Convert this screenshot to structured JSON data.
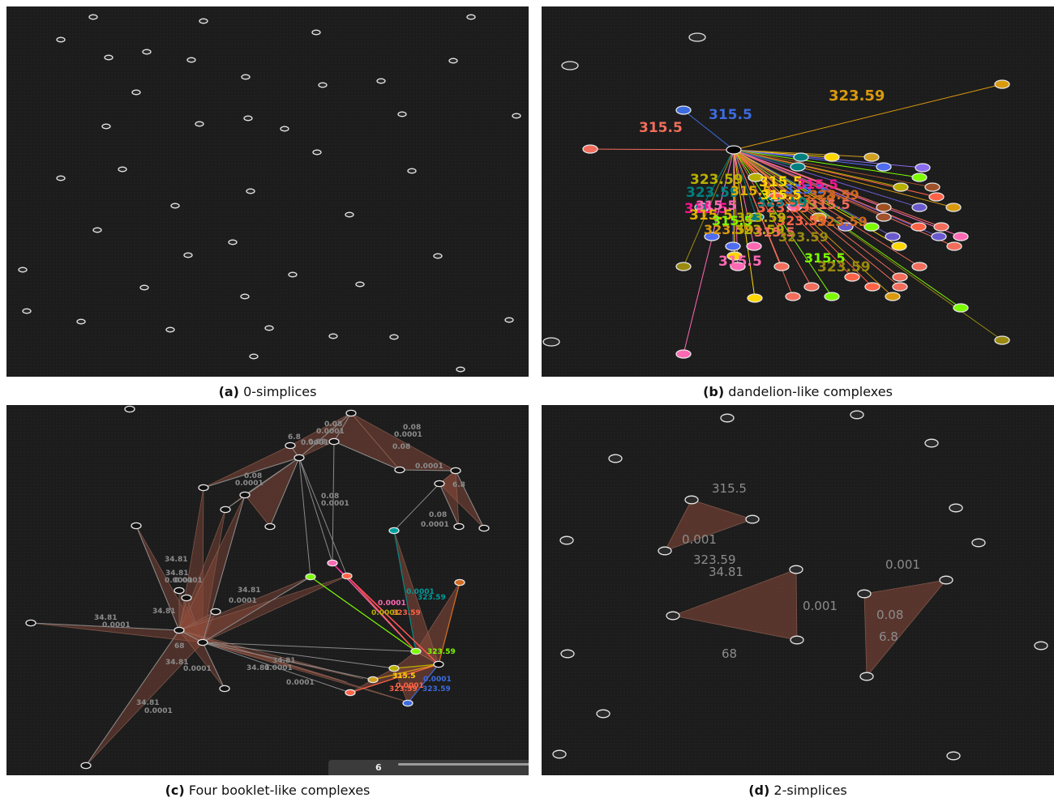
{
  "captions": [
    {
      "tag": "(a)",
      "text": "0-simplices"
    },
    {
      "tag": "(b)",
      "text": "dandelion-like complexes"
    },
    {
      "tag": "(c)",
      "text": "Four booklet-like complexes"
    },
    {
      "tag": "(d)",
      "text": "2-simplices"
    }
  ],
  "colors": {
    "background": "#1c1c1c",
    "node_stroke": "#e6e6e6",
    "face_fill": "#8a4a3a",
    "edge_gray": "#8a8a8a",
    "label_gray": "#8c8c8c"
  },
  "panel_b": {
    "labels": [
      {
        "text": "323.59",
        "color": "#d99a0e"
      },
      {
        "text": "315.5",
        "color": "#3d6be0"
      },
      {
        "text": "315.5",
        "color": "#f26d5b"
      },
      {
        "text": "315.5",
        "color": "#7cfc00"
      },
      {
        "text": "323.59",
        "color": "#9a8a10"
      },
      {
        "text": "315.5",
        "color": "#ff69b4"
      },
      {
        "text": "323.59",
        "color": "#b8b000"
      },
      {
        "text": "315.5",
        "color": "#ffd700"
      },
      {
        "text": "323.59",
        "color": "#008080"
      },
      {
        "text": "315.5",
        "color": "#ff1493"
      },
      {
        "text": "323.59",
        "color": "#ff6347"
      },
      {
        "text": "315.5",
        "color": "#e0b000"
      },
      {
        "text": "323.59",
        "color": "#d2691e"
      }
    ]
  },
  "panel_c": {
    "labels": [
      "0.08",
      "0.0001",
      "0.08",
      "0.0001",
      "6.8",
      "0.08",
      "0.0001",
      "0.08",
      "0.0001",
      "6.8",
      "0.08",
      "0.0001",
      "0.08",
      "0.0001",
      "0.08",
      "0.0001",
      "34.81",
      "0.0001",
      "34.81",
      "0.0001",
      "34.81",
      "0.0001",
      "34.81",
      "34.81",
      "0.0001",
      "68",
      "34.81",
      "0.0001",
      "34.81",
      "0.0001",
      "34.81",
      "0.0001",
      "34.81",
      "0.0001",
      "0.0001",
      "323.59",
      "0.0001",
      "323.59",
      "0.0001",
      "323.59",
      "315.5",
      "0.0001",
      "323.59",
      "0.0001",
      "323.59"
    ],
    "slider_value": "6"
  },
  "panel_d": {
    "labels": [
      "315.5",
      "0.001",
      "323.59",
      "34.81",
      "0.001",
      "68",
      "0.001",
      "0.08",
      "6.8"
    ]
  }
}
